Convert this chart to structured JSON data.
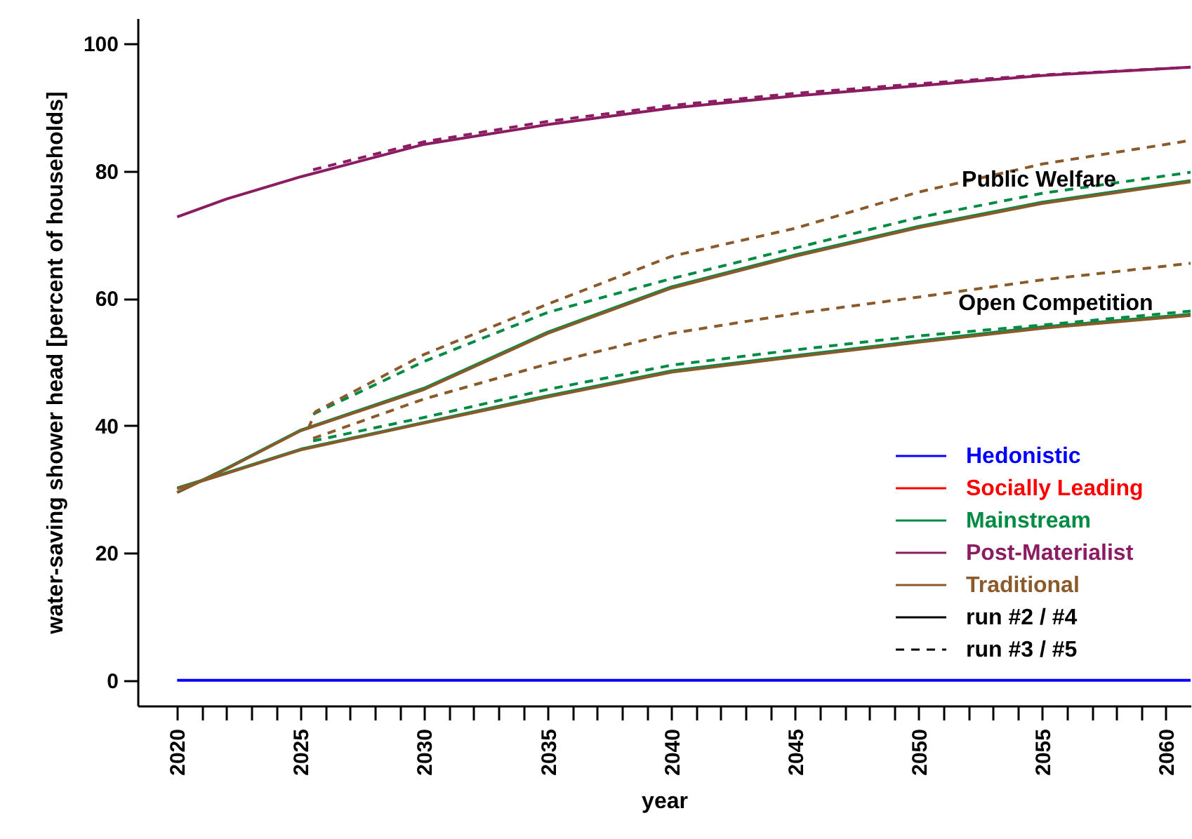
{
  "chart_data": {
    "type": "line",
    "xlabel": "year",
    "ylabel": "water-saving shower head [percent of households]",
    "xlim": [
      2018.4,
      2061
    ],
    "ylim": [
      -4,
      104
    ],
    "xticks": [
      2020,
      {
        "value": 2021,
        "label": null
      },
      {
        "value": 2022,
        "label": null
      },
      {
        "value": 2023,
        "label": null
      },
      {
        "value": 2024,
        "label": null
      },
      2025,
      {
        "value": 2026,
        "label": null
      },
      {
        "value": 2027,
        "label": null
      },
      {
        "value": 2028,
        "label": null
      },
      {
        "value": 2029,
        "label": null
      },
      2030,
      {
        "value": 2031,
        "label": null
      },
      {
        "value": 2032,
        "label": null
      },
      {
        "value": 2033,
        "label": null
      },
      {
        "value": 2034,
        "label": null
      },
      2035,
      {
        "value": 2036,
        "label": null
      },
      {
        "value": 2037,
        "label": null
      },
      {
        "value": 2038,
        "label": null
      },
      {
        "value": 2039,
        "label": null
      },
      2040,
      {
        "value": 2041,
        "label": null
      },
      {
        "value": 2042,
        "label": null
      },
      {
        "value": 2043,
        "label": null
      },
      {
        "value": 2044,
        "label": null
      },
      2045,
      {
        "value": 2046,
        "label": null
      },
      {
        "value": 2047,
        "label": null
      },
      {
        "value": 2048,
        "label": null
      },
      {
        "value": 2049,
        "label": null
      },
      2050,
      {
        "value": 2051,
        "label": null
      },
      {
        "value": 2052,
        "label": null
      },
      {
        "value": 2053,
        "label": null
      },
      {
        "value": 2054,
        "label": null
      },
      2055,
      {
        "value": 2056,
        "label": null
      },
      {
        "value": 2057,
        "label": null
      },
      {
        "value": 2058,
        "label": null
      },
      {
        "value": 2059,
        "label": null
      },
      2060
    ],
    "yticks": [
      0,
      20,
      40,
      60,
      80,
      100
    ],
    "legend": "bottom right",
    "annotations": [
      "Public Welfare",
      "Open Competition"
    ],
    "series": [
      {
        "name": "Hedonistic",
        "color": "#0000ff",
        "line_style": "solid",
        "x": [
          2020,
          2022,
          2025,
          2030,
          2035,
          2040,
          2045,
          2050,
          2055,
          2061
        ],
        "values": [
          0,
          0,
          0,
          0,
          0,
          0,
          0,
          0,
          0,
          0
        ]
      },
      {
        "name": "Socially Leading",
        "color": "#ff0000",
        "line_style": "solid"
      },
      {
        "name": "Mainstream",
        "color": "#008b45",
        "line_style": "solid",
        "x": [
          2020,
          2022,
          2025,
          2030,
          2035,
          2040,
          2045,
          2050,
          2055,
          2061
        ],
        "values": [
          29.5,
          33.3,
          39.3,
          45.9,
          54.7,
          61.8,
          66.8,
          71.3,
          75.1,
          78.5
        ]
      },
      {
        "color": "#008b45",
        "line_style": "solid",
        "x": [
          2020,
          2022,
          2025,
          2030,
          2035,
          2040,
          2045,
          2050,
          2055,
          2061
        ],
        "values": [
          30.2,
          32.6,
          36.3,
          40.5,
          44.7,
          48.6,
          51.0,
          53.3,
          55.5,
          57.5
        ]
      },
      {
        "name": "Post-Materialist",
        "color": "#8b1c62",
        "line_style": "solid",
        "x": [
          2020,
          2022,
          2025,
          2030,
          2035,
          2040,
          2045,
          2050,
          2055,
          2061
        ],
        "values": [
          72.8,
          75.6,
          79.1,
          84.2,
          87.3,
          89.9,
          91.8,
          93.4,
          95.0,
          96.3
        ]
      },
      {
        "name": "Traditional",
        "color": "#8b5a2b",
        "line_style": "solid",
        "x": [
          2020,
          2022,
          2025,
          2030,
          2035,
          2040,
          2045,
          2050,
          2055,
          2061
        ],
        "values": [
          29.5,
          33.2,
          39.2,
          45.7,
          54.5,
          61.6,
          66.6,
          71.1,
          74.9,
          78.3
        ]
      },
      {
        "color": "#8b5a2b",
        "line_style": "solid",
        "x": [
          2020,
          2022,
          2025,
          2030,
          2035,
          2040,
          2045,
          2050,
          2055,
          2061
        ],
        "values": [
          30.1,
          32.5,
          36.2,
          40.4,
          44.5,
          48.4,
          50.8,
          53.1,
          55.3,
          57.3
        ]
      },
      {
        "color": "#008b45",
        "line_style": "dashed",
        "x": [
          2025.5,
          2030,
          2035,
          2040,
          2045,
          2050,
          2055,
          2061
        ],
        "values": [
          41.8,
          50.1,
          57.8,
          63.1,
          67.9,
          72.7,
          76.5,
          79.8
        ]
      },
      {
        "color": "#008b45",
        "line_style": "dashed",
        "x": [
          2025.5,
          2030,
          2035,
          2040,
          2045,
          2050,
          2055,
          2061
        ],
        "values": [
          37.6,
          41.3,
          45.7,
          49.5,
          51.9,
          54.1,
          55.8,
          58.0
        ]
      },
      {
        "color": "#8b1c62",
        "line_style": "dashed",
        "x": [
          2025.5,
          2030,
          2035,
          2040,
          2045,
          2050,
          2055,
          2061
        ],
        "values": [
          80.2,
          84.6,
          87.8,
          90.3,
          92.2,
          93.7,
          95.1,
          96.3
        ]
      },
      {
        "color": "#8b5a2b",
        "line_style": "dashed",
        "x": [
          2025.3,
          2025.6,
          2030,
          2035,
          2040,
          2045,
          2050,
          2055,
          2061
        ],
        "values": [
          39.5,
          42.2,
          51.2,
          59.1,
          66.6,
          71.0,
          76.7,
          81.1,
          84.8
        ]
      },
      {
        "color": "#8b5a2b",
        "line_style": "dashed",
        "x": [
          2025.5,
          2030,
          2035,
          2040,
          2045,
          2050,
          2055,
          2061
        ],
        "values": [
          38.0,
          44.2,
          49.7,
          54.5,
          57.6,
          60.2,
          62.9,
          65.5
        ]
      },
      {
        "name": "run #2 / #4",
        "color": "#000000",
        "line_style": "solid"
      },
      {
        "name": "run #3 / #5",
        "color": "#000000",
        "line_style": "dashed"
      }
    ]
  }
}
